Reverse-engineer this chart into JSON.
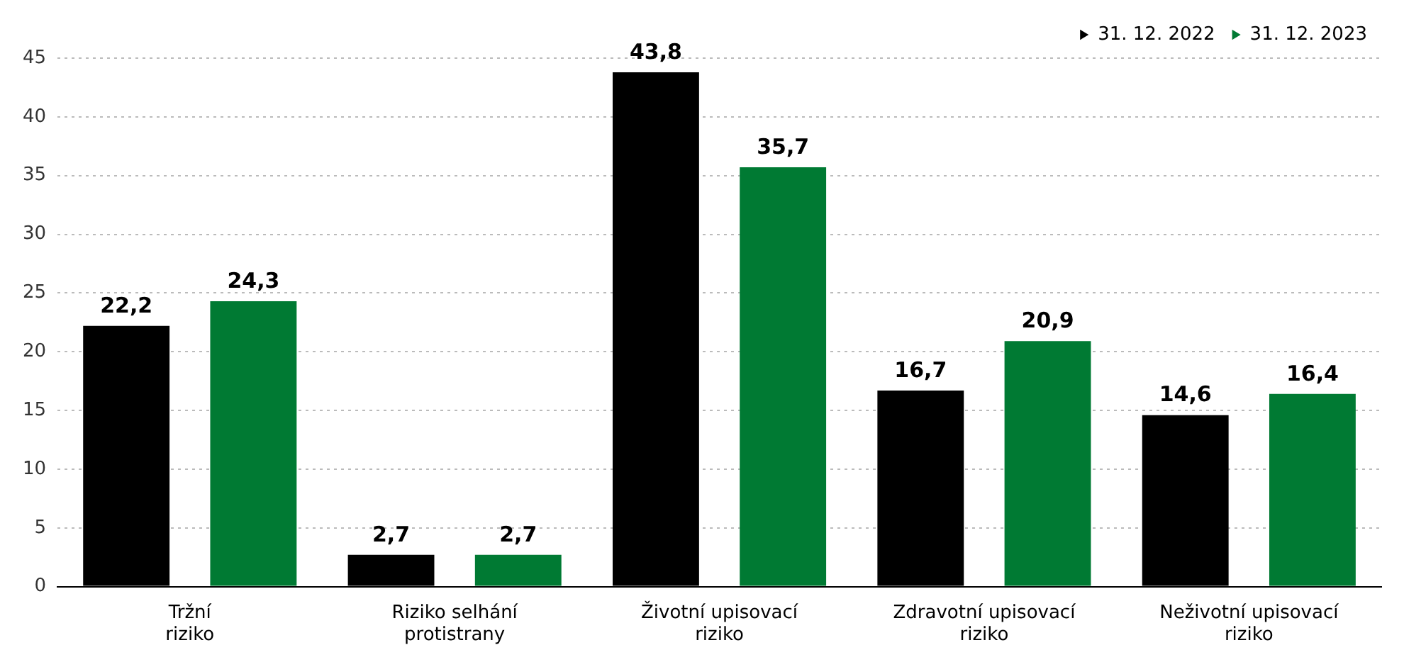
{
  "chart_data": {
    "type": "bar",
    "categories": [
      "Tržní riziko",
      "Riziko selhání protistrany",
      "Životní upisovací riziko",
      "Zdravotní upisovací riziko",
      "Neživotní upisovací riziko"
    ],
    "series": [
      {
        "name": "31. 12. 2022",
        "color": "#000000",
        "values": [
          22.2,
          2.7,
          43.8,
          16.7,
          14.6
        ],
        "value_labels": [
          "22,2",
          "2,7",
          "43,8",
          "16,7",
          "14,6"
        ]
      },
      {
        "name": "31. 12. 2023",
        "color": "#007a33",
        "values": [
          24.3,
          2.7,
          35.7,
          20.9,
          16.4
        ],
        "value_labels": [
          "24,3",
          "2,7",
          "35,7",
          "20,9",
          "16,4"
        ]
      }
    ],
    "ylim": [
      0,
      45
    ],
    "yticks": [
      0,
      5,
      10,
      15,
      20,
      25,
      30,
      35,
      40,
      45
    ],
    "grid": "y",
    "legend": "top right",
    "marker": "triangle"
  }
}
